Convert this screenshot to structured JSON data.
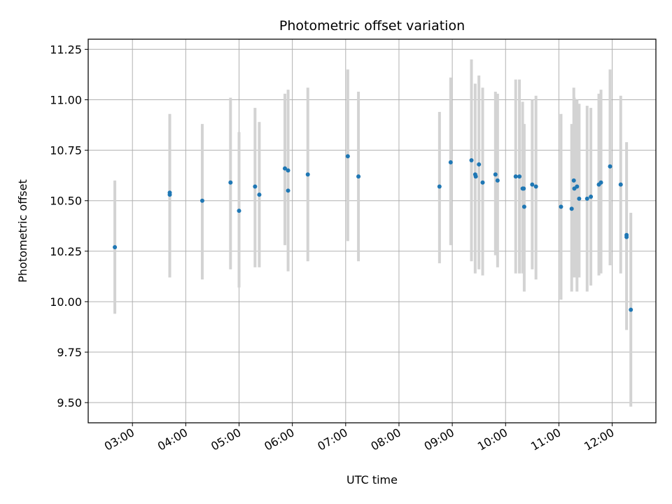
{
  "chart_data": {
    "type": "scatter",
    "title": "Photometric offset variation",
    "xlabel": "UTC time",
    "ylabel": "Photometric offset",
    "x_unit": "hours UTC",
    "xlim": [
      2.17,
      12.82
    ],
    "ylim": [
      9.4,
      11.3
    ],
    "grid": true,
    "xticks": [
      3,
      4,
      5,
      6,
      7,
      8,
      9,
      10,
      11,
      12
    ],
    "xtick_labels": [
      "03:00",
      "04:00",
      "05:00",
      "06:00",
      "07:00",
      "08:00",
      "09:00",
      "10:00",
      "11:00",
      "12:00"
    ],
    "yticks": [
      9.5,
      9.75,
      10.0,
      10.25,
      10.5,
      10.75,
      11.0,
      11.25
    ],
    "ytick_labels": [
      "9.50",
      "9.75",
      "10.00",
      "10.25",
      "10.50",
      "10.75",
      "11.00",
      "11.25"
    ],
    "colors": {
      "points": "#1f77b4",
      "error_bars": "#d3d3d3",
      "grid": "#b0b0b0"
    },
    "points": [
      {
        "x": 2.67,
        "y": 10.27,
        "low": 9.94,
        "high": 10.6
      },
      {
        "x": 3.7,
        "y": 10.54,
        "low": 10.12,
        "high": 10.93
      },
      {
        "x": 3.7,
        "y": 10.53
      },
      {
        "x": 4.31,
        "y": 10.5,
        "low": 10.11,
        "high": 10.88
      },
      {
        "x": 4.84,
        "y": 10.59,
        "low": 10.16,
        "high": 11.01
      },
      {
        "x": 5.0,
        "y": 10.45,
        "low": 10.07,
        "high": 10.84
      },
      {
        "x": 5.3,
        "y": 10.57,
        "low": 10.17,
        "high": 10.96
      },
      {
        "x": 5.38,
        "y": 10.53,
        "low": 10.17,
        "high": 10.89
      },
      {
        "x": 5.86,
        "y": 10.66,
        "low": 10.28,
        "high": 11.03
      },
      {
        "x": 5.92,
        "y": 10.65,
        "low": 10.15,
        "high": 11.05
      },
      {
        "x": 5.92,
        "y": 10.55
      },
      {
        "x": 6.29,
        "y": 10.63,
        "low": 10.2,
        "high": 11.06
      },
      {
        "x": 7.04,
        "y": 10.72,
        "low": 10.3,
        "high": 11.15
      },
      {
        "x": 7.24,
        "y": 10.62,
        "low": 10.2,
        "high": 11.04
      },
      {
        "x": 8.76,
        "y": 10.57,
        "low": 10.19,
        "high": 10.94
      },
      {
        "x": 8.97,
        "y": 10.69,
        "low": 10.28,
        "high": 11.11
      },
      {
        "x": 9.36,
        "y": 10.7,
        "low": 10.2,
        "high": 11.2
      },
      {
        "x": 9.43,
        "y": 10.63,
        "low": 10.14,
        "high": 11.08
      },
      {
        "x": 9.44,
        "y": 10.62
      },
      {
        "x": 9.5,
        "y": 10.68,
        "low": 10.16,
        "high": 11.12
      },
      {
        "x": 9.57,
        "y": 10.59,
        "low": 10.13,
        "high": 11.06
      },
      {
        "x": 9.81,
        "y": 10.63,
        "low": 10.23,
        "high": 11.04
      },
      {
        "x": 9.85,
        "y": 10.6,
        "low": 10.17,
        "high": 11.03
      },
      {
        "x": 10.19,
        "y": 10.62,
        "low": 10.14,
        "high": 11.1
      },
      {
        "x": 10.26,
        "y": 10.62,
        "low": 10.14,
        "high": 11.1
      },
      {
        "x": 10.32,
        "y": 10.56,
        "low": 10.14,
        "high": 10.99
      },
      {
        "x": 10.35,
        "y": 10.47,
        "low": 10.05,
        "high": 10.88
      },
      {
        "x": 10.34,
        "y": 10.56
      },
      {
        "x": 10.5,
        "y": 10.58,
        "low": 10.16,
        "high": 11.0
      },
      {
        "x": 10.57,
        "y": 10.57,
        "low": 10.11,
        "high": 11.02
      },
      {
        "x": 11.04,
        "y": 10.47,
        "low": 10.01,
        "high": 10.93
      },
      {
        "x": 11.24,
        "y": 10.46,
        "low": 10.05,
        "high": 10.88
      },
      {
        "x": 11.28,
        "y": 10.6,
        "low": 10.13,
        "high": 11.06
      },
      {
        "x": 11.29,
        "y": 10.56,
        "low": 10.12,
        "high": 11.01
      },
      {
        "x": 11.34,
        "y": 10.57,
        "low": 10.05,
        "high": 11.0
      },
      {
        "x": 11.38,
        "y": 10.51,
        "low": 10.12,
        "high": 10.98
      },
      {
        "x": 11.53,
        "y": 10.51,
        "low": 10.05,
        "high": 10.97
      },
      {
        "x": 11.6,
        "y": 10.52,
        "low": 10.08,
        "high": 10.96
      },
      {
        "x": 11.75,
        "y": 10.58,
        "low": 10.13,
        "high": 11.03
      },
      {
        "x": 11.79,
        "y": 10.59,
        "low": 10.14,
        "high": 11.05
      },
      {
        "x": 11.96,
        "y": 10.67,
        "low": 10.18,
        "high": 11.15
      },
      {
        "x": 12.16,
        "y": 10.58,
        "low": 10.14,
        "high": 11.02
      },
      {
        "x": 12.27,
        "y": 10.33,
        "low": 9.86,
        "high": 10.79
      },
      {
        "x": 12.27,
        "y": 10.32
      },
      {
        "x": 12.35,
        "y": 9.96,
        "low": 9.48,
        "high": 10.44
      }
    ]
  }
}
